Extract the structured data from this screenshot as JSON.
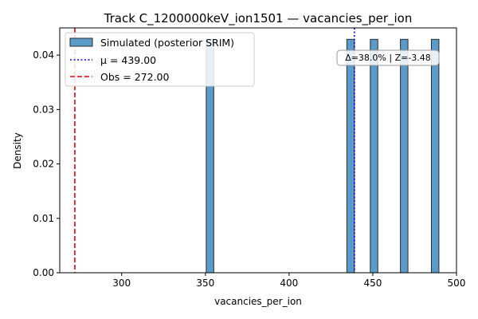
{
  "chart_data": {
    "type": "histogram",
    "title": "Track C_1200000keV_ion1501 — vacancies_per_ion",
    "xlabel": "vacancies_per_ion",
    "ylabel": "Density",
    "xlim": [
      263,
      500
    ],
    "ylim": [
      0,
      0.045
    ],
    "xticks": [
      300,
      350,
      400,
      450,
      500
    ],
    "xtick_labels": [
      "300",
      "350",
      "400",
      "450",
      "500"
    ],
    "yticks": [
      0,
      0.01,
      0.02,
      0.03,
      0.04
    ],
    "ytick_labels": [
      "0.00",
      "0.01",
      "0.02",
      "0.03",
      "0.04"
    ],
    "grid": false,
    "legend_position": "top-left",
    "bins": [
      {
        "x0": 350.5,
        "x1": 355.0,
        "density": 0.0429
      },
      {
        "x0": 434.5,
        "x1": 439.0,
        "density": 0.0429
      },
      {
        "x0": 448.5,
        "x1": 453.0,
        "density": 0.0429
      },
      {
        "x0": 466.5,
        "x1": 471.0,
        "density": 0.0429
      },
      {
        "x0": 485.0,
        "x1": 489.5,
        "density": 0.0429
      }
    ],
    "series": [
      {
        "name": "Simulated (posterior SRIM)",
        "kind": "histogram",
        "color": "#5b9bc9",
        "edge": "#2b2b2b"
      },
      {
        "name": "μ = 439.00",
        "kind": "vline",
        "x": 439.0,
        "color": "#0000ff",
        "style": "dotted"
      },
      {
        "name": "Obs = 272.00",
        "kind": "vline",
        "x": 272.0,
        "color": "#e8000b",
        "style": "dashed"
      }
    ],
    "annotation": "Δ=38.0% | Z=-3.48"
  }
}
